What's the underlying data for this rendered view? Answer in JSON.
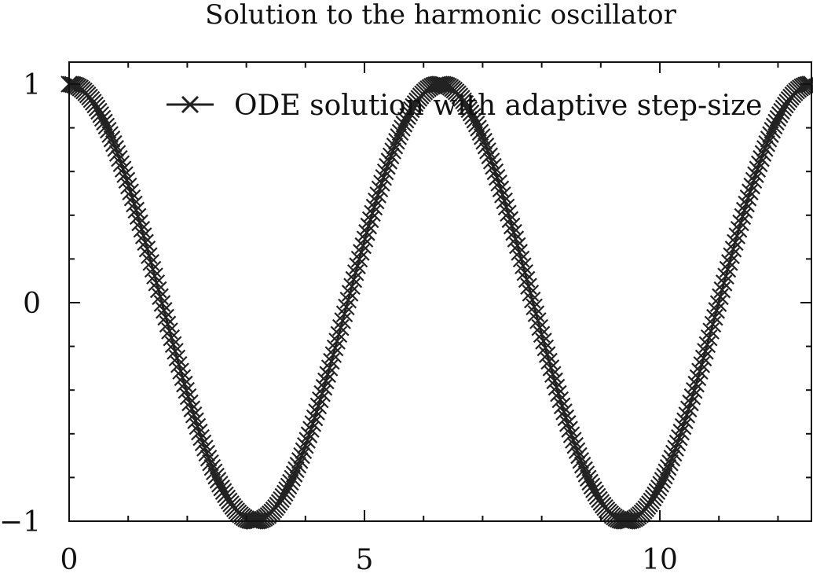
{
  "chart_data": {
    "type": "scatter",
    "title": "Solution to the harmonic oscillator",
    "xlabel": "",
    "ylabel": "",
    "xlim": [
      0,
      12.566
    ],
    "ylim": [
      -1,
      1
    ],
    "x_ticks": [
      {
        "value": 0,
        "label": "0"
      },
      {
        "value": 5,
        "label": "5"
      },
      {
        "value": 10,
        "label": "10"
      }
    ],
    "y_ticks": [
      {
        "value": -1,
        "label": "−1"
      },
      {
        "value": 0,
        "label": "0"
      },
      {
        "value": 1,
        "label": "1"
      }
    ],
    "x_minor_step": 1,
    "y_minor_step": 0.2,
    "grid": false,
    "legend_position": "top-right",
    "series": [
      {
        "name": "ODE solution with adaptive step-size",
        "marker": "x",
        "color": "#222222",
        "line": true,
        "function": "cos(x)",
        "x_start": 0,
        "x_end": 12.566,
        "point_count": 400
      }
    ]
  }
}
